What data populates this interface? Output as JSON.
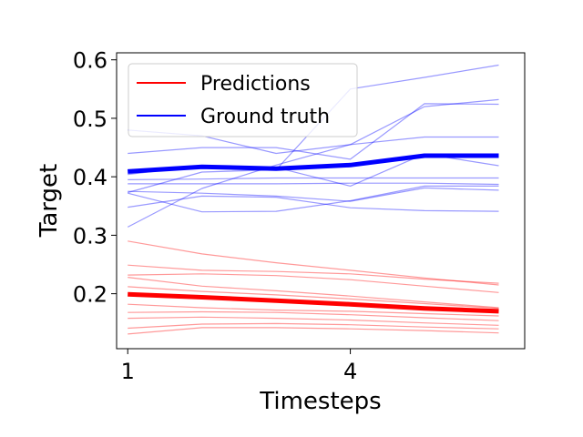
{
  "chart_data": {
    "type": "line",
    "title": "",
    "xlabel": "Timesteps",
    "ylabel": "Target",
    "xlim": [
      0.85,
      6.35
    ],
    "ylim": [
      0.106,
      0.612
    ],
    "x_ticks": [
      1,
      4
    ],
    "x_tick_labels": [
      "1",
      "4"
    ],
    "y_ticks": [
      0.2,
      0.3,
      0.4,
      0.5,
      0.6
    ],
    "y_tick_labels": [
      "0.2",
      "0.3",
      "0.4",
      "0.5",
      "0.6"
    ],
    "grid": false,
    "legend": {
      "position": "top-left",
      "entries": [
        {
          "label": "Predictions",
          "color": "#ff0000"
        },
        {
          "label": "Ground truth",
          "color": "#0000ff"
        }
      ]
    },
    "x": [
      1,
      2,
      3,
      4,
      5,
      6
    ],
    "series": [
      {
        "group": "Ground truth",
        "role": "mean",
        "color": "#0000ff",
        "values": [
          0.409,
          0.417,
          0.414,
          0.42,
          0.436,
          0.436
        ]
      },
      {
        "group": "Ground truth",
        "role": "sample",
        "color": "#0000ff",
        "values": [
          0.314,
          0.38,
          0.42,
          0.455,
          0.52,
          0.532
        ]
      },
      {
        "group": "Ground truth",
        "role": "sample",
        "color": "#0000ff",
        "values": [
          0.373,
          0.408,
          0.412,
          0.55,
          0.57,
          0.591
        ]
      },
      {
        "group": "Ground truth",
        "role": "sample",
        "color": "#0000ff",
        "values": [
          0.44,
          0.45,
          0.45,
          0.43,
          0.525,
          0.524
        ]
      },
      {
        "group": "Ground truth",
        "role": "sample",
        "color": "#0000ff",
        "values": [
          0.48,
          0.47,
          0.44,
          0.455,
          0.468,
          0.468
        ]
      },
      {
        "group": "Ground truth",
        "role": "sample",
        "color": "#0000ff",
        "values": [
          0.404,
          0.419,
          0.416,
          0.384,
          0.439,
          0.419
        ]
      },
      {
        "group": "Ground truth",
        "role": "sample",
        "color": "#0000ff",
        "values": [
          0.395,
          0.396,
          0.398,
          0.398,
          0.398,
          0.398
        ]
      },
      {
        "group": "Ground truth",
        "role": "sample",
        "color": "#0000ff",
        "values": [
          0.388,
          0.388,
          0.388,
          0.389,
          0.389,
          0.387
        ]
      },
      {
        "group": "Ground truth",
        "role": "sample",
        "color": "#0000ff",
        "values": [
          0.375,
          0.372,
          0.367,
          0.358,
          0.381,
          0.377
        ]
      },
      {
        "group": "Ground truth",
        "role": "sample",
        "color": "#0000ff",
        "values": [
          0.348,
          0.367,
          0.365,
          0.347,
          0.342,
          0.341
        ]
      },
      {
        "group": "Ground truth",
        "role": "sample",
        "color": "#0000ff",
        "values": [
          0.372,
          0.34,
          0.341,
          0.359,
          0.384,
          0.384
        ]
      },
      {
        "group": "Predictions",
        "role": "mean",
        "color": "#ff0000",
        "values": [
          0.199,
          0.194,
          0.188,
          0.182,
          0.175,
          0.17
        ]
      },
      {
        "group": "Predictions",
        "role": "sample",
        "color": "#ff0000",
        "values": [
          0.29,
          0.268,
          0.253,
          0.24,
          0.227,
          0.215
        ]
      },
      {
        "group": "Predictions",
        "role": "sample",
        "color": "#ff0000",
        "values": [
          0.249,
          0.24,
          0.238,
          0.234,
          0.225,
          0.218
        ]
      },
      {
        "group": "Predictions",
        "role": "sample",
        "color": "#ff0000",
        "values": [
          0.232,
          0.234,
          0.231,
          0.224,
          0.213,
          0.202
        ]
      },
      {
        "group": "Predictions",
        "role": "sample",
        "color": "#ff0000",
        "values": [
          0.228,
          0.213,
          0.205,
          0.196,
          0.186,
          0.176
        ]
      },
      {
        "group": "Predictions",
        "role": "sample",
        "color": "#ff0000",
        "values": [
          0.212,
          0.204,
          0.198,
          0.191,
          0.183,
          0.175
        ]
      },
      {
        "group": "Predictions",
        "role": "sample",
        "color": "#ff0000",
        "values": [
          0.182,
          0.176,
          0.172,
          0.17,
          0.166,
          0.162
        ]
      },
      {
        "group": "Predictions",
        "role": "sample",
        "color": "#ff0000",
        "values": [
          0.168,
          0.169,
          0.168,
          0.164,
          0.159,
          0.154
        ]
      },
      {
        "group": "Predictions",
        "role": "sample",
        "color": "#ff0000",
        "values": [
          0.158,
          0.16,
          0.158,
          0.155,
          0.15,
          0.146
        ]
      },
      {
        "group": "Predictions",
        "role": "sample",
        "color": "#ff0000",
        "values": [
          0.141,
          0.148,
          0.149,
          0.147,
          0.143,
          0.14
        ]
      },
      {
        "group": "Predictions",
        "role": "sample",
        "color": "#ff0000",
        "values": [
          0.131,
          0.142,
          0.142,
          0.14,
          0.137,
          0.133
        ]
      }
    ]
  }
}
